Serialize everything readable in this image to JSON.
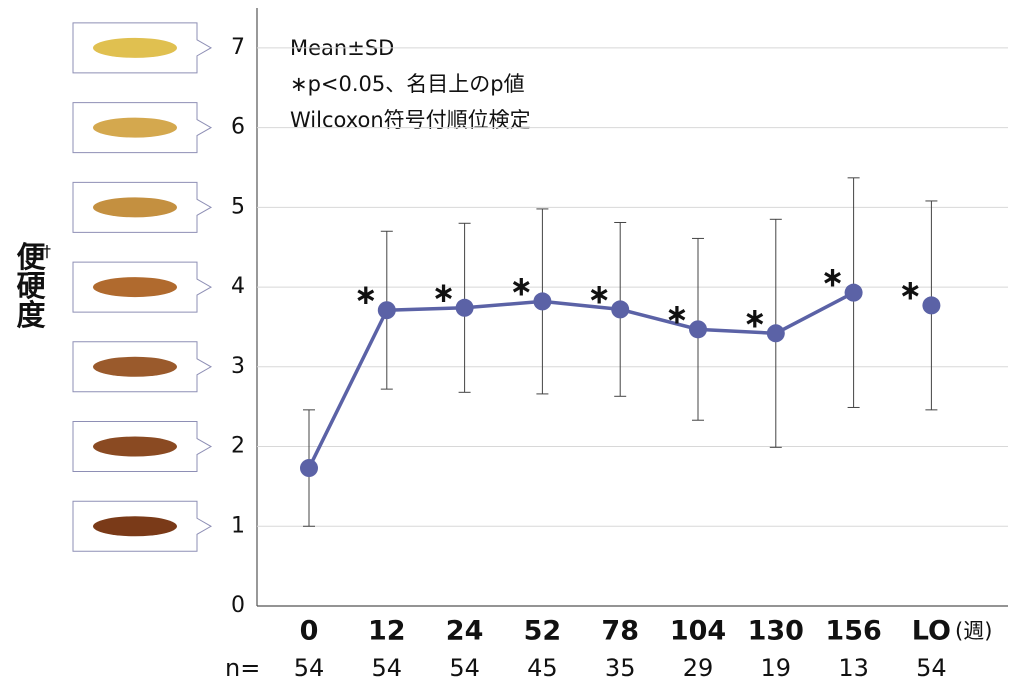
{
  "chart_data": {
    "type": "line",
    "ylabel": "便硬度",
    "ylabel_mark": "†",
    "notes": [
      "Mean±SD",
      "∗p<0.05、名目上のp値",
      "Wilcoxon符号付順位検定"
    ],
    "categories": [
      "0",
      "12",
      "24",
      "52",
      "78",
      "104",
      "130",
      "156",
      "LO"
    ],
    "x_unit": "(週)",
    "n_label": "n=",
    "n": [
      54,
      54,
      54,
      45,
      35,
      29,
      19,
      13,
      54
    ],
    "series": [
      {
        "color": "#5b62a6",
        "values": [
          1.73,
          3.71,
          3.74,
          3.82,
          3.72,
          3.47,
          3.42,
          3.93,
          null
        ],
        "errors": [
          0.73,
          0.99,
          1.06,
          1.16,
          1.09,
          1.14,
          1.43,
          1.44,
          null
        ]
      },
      {
        "color": "#5b62a6",
        "values": [
          null,
          null,
          null,
          null,
          null,
          null,
          null,
          null,
          3.77
        ],
        "errors": [
          null,
          null,
          null,
          null,
          null,
          null,
          null,
          null,
          1.31
        ]
      }
    ],
    "significance": [
      null,
      "∗",
      "∗",
      "∗",
      "∗",
      "∗",
      "∗",
      "∗",
      "∗"
    ],
    "ylim": [
      0,
      7.5
    ],
    "yticks": [
      0,
      1,
      2,
      3,
      4,
      5,
      6,
      7
    ],
    "grid": true
  }
}
